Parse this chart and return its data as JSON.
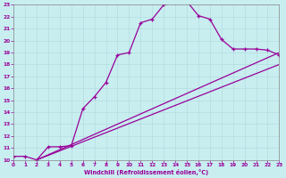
{
  "xlabel": "Windchill (Refroidissement éolien,°C)",
  "bg_color": "#c8eef0",
  "grid_color": "#b0d8dc",
  "line_color": "#990099",
  "xlim": [
    0,
    23
  ],
  "ylim": [
    10,
    23
  ],
  "xticks": [
    0,
    1,
    2,
    3,
    4,
    5,
    6,
    7,
    8,
    9,
    10,
    11,
    12,
    13,
    14,
    15,
    16,
    17,
    18,
    19,
    20,
    21,
    22,
    23
  ],
  "yticks": [
    10,
    11,
    12,
    13,
    14,
    15,
    16,
    17,
    18,
    19,
    20,
    21,
    22,
    23
  ],
  "curve1_x": [
    0,
    1,
    2,
    3,
    4,
    5,
    6,
    7,
    8,
    9,
    10,
    11,
    12,
    13,
    14,
    15,
    16,
    17,
    18,
    19,
    20,
    21,
    22,
    23
  ],
  "curve1_y": [
    10.3,
    10.3,
    10.0,
    11.1,
    11.1,
    11.2,
    14.3,
    15.3,
    16.5,
    18.8,
    19.0,
    21.5,
    21.8,
    23.0,
    23.2,
    23.3,
    22.1,
    21.8,
    20.1,
    19.3,
    19.3,
    19.3,
    19.2,
    18.8
  ],
  "curve2_x": [
    2,
    23
  ],
  "curve2_y": [
    10.0,
    19.0
  ],
  "curve3_x": [
    2,
    23
  ],
  "curve3_y": [
    10.0,
    18.0
  ]
}
